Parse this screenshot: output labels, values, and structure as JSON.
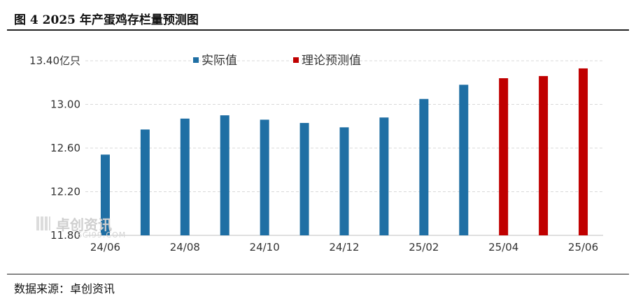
{
  "figure": {
    "title": "图 4  2025 年产蛋鸡存栏量预测图",
    "source": "数据来源：卓创资讯"
  },
  "watermark": {
    "name": "卓创资讯",
    "sub": "SCI99.COM"
  },
  "chart_data": {
    "type": "bar",
    "title": "",
    "xlabel": "",
    "ylabel": "",
    "unit": "亿只",
    "ylim": [
      11.8,
      13.4
    ],
    "yticks": [
      11.8,
      12.2,
      12.6,
      13.0,
      13.4
    ],
    "ytick_labels": [
      "11.80",
      "12.20",
      "12.60",
      "13.00",
      "13.40"
    ],
    "grid": "horizontal dashed",
    "legend_position": "top",
    "categories": [
      "24/06",
      "24/07",
      "24/08",
      "24/09",
      "24/10",
      "24/11",
      "24/12",
      "25/01",
      "25/02",
      "25/03",
      "25/04",
      "25/05",
      "25/06"
    ],
    "xtick_labels": [
      "24/06",
      "24/08",
      "24/10",
      "24/12",
      "25/02",
      "25/04",
      "25/06"
    ],
    "series": [
      {
        "name": "实际值",
        "color": "#1f6fa4",
        "values": [
          12.54,
          12.77,
          12.87,
          12.9,
          12.86,
          12.83,
          12.79,
          12.88,
          13.05,
          13.18,
          null,
          null,
          null
        ]
      },
      {
        "name": "理论预测值",
        "color": "#c00000",
        "values": [
          null,
          null,
          null,
          null,
          null,
          null,
          null,
          null,
          null,
          null,
          13.24,
          13.26,
          13.33
        ]
      }
    ]
  }
}
